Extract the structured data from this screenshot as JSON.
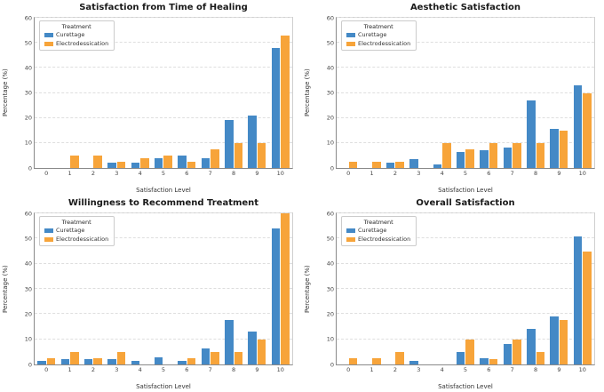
{
  "page": {
    "background": "#ffffff"
  },
  "colors": {
    "curettage": "#4489c6",
    "electrodessication": "#f7a43a"
  },
  "chart_data": [
    {
      "type": "bar",
      "title": "Satisfaction from Time of Healing",
      "xlabel": "Satisfaction Level",
      "ylabel": "Percentage (%)",
      "legend_title": "Treatment",
      "legend_position": "upper-left",
      "grid": "horizontal-dashed",
      "categories": [
        "0",
        "1",
        "2",
        "3",
        "4",
        "5",
        "6",
        "7",
        "8",
        "9",
        "10"
      ],
      "ylim": [
        0,
        60
      ],
      "yticks": [
        0,
        10,
        20,
        30,
        40,
        50,
        60
      ],
      "series": [
        {
          "name": "Curettage",
          "color": "#4489c6",
          "values": [
            0,
            0,
            0,
            2,
            2,
            4,
            5,
            4,
            19,
            21,
            48
          ]
        },
        {
          "name": "Electrodessication",
          "color": "#f7a43a",
          "values": [
            0,
            5,
            5,
            2.5,
            4,
            5,
            2.5,
            7.5,
            10,
            10,
            53
          ]
        }
      ]
    },
    {
      "type": "bar",
      "title": "Aesthetic Satisfaction",
      "xlabel": "Satisfaction Level",
      "ylabel": "Percentage (%)",
      "legend_title": "Treatment",
      "legend_position": "upper-left",
      "grid": "horizontal-dashed",
      "categories": [
        "0",
        "1",
        "2",
        "3",
        "4",
        "5",
        "6",
        "7",
        "8",
        "9",
        "10"
      ],
      "ylim": [
        0,
        60
      ],
      "yticks": [
        0,
        10,
        20,
        30,
        40,
        50,
        60
      ],
      "series": [
        {
          "name": "Curettage",
          "color": "#4489c6",
          "values": [
            0,
            0,
            2,
            3.5,
            1.5,
            6.5,
            7,
            8,
            27,
            15.5,
            33
          ]
        },
        {
          "name": "Electrodessication",
          "color": "#f7a43a",
          "values": [
            2.5,
            2.5,
            2.5,
            0,
            10,
            7.5,
            10,
            10,
            10,
            15,
            30
          ]
        }
      ]
    },
    {
      "type": "bar",
      "title": "Willingness to Recommend Treatment",
      "xlabel": "Satisfaction Level",
      "ylabel": "Percentage (%)",
      "legend_title": "Treatment",
      "legend_position": "upper-left",
      "grid": "horizontal-dashed",
      "categories": [
        "0",
        "1",
        "2",
        "3",
        "4",
        "5",
        "6",
        "7",
        "8",
        "9",
        "10"
      ],
      "ylim": [
        0,
        60
      ],
      "yticks": [
        0,
        10,
        20,
        30,
        40,
        50,
        60
      ],
      "series": [
        {
          "name": "Curettage",
          "color": "#4489c6",
          "values": [
            1.5,
            2,
            2,
            2,
            1.5,
            3,
            1.5,
            6.5,
            17.5,
            13,
            54
          ]
        },
        {
          "name": "Electrodessication",
          "color": "#f7a43a",
          "values": [
            2.5,
            5,
            2.5,
            5,
            0,
            0,
            2.5,
            5,
            5,
            10,
            60
          ]
        }
      ]
    },
    {
      "type": "bar",
      "title": "Overall Satisfaction",
      "xlabel": "Satisfaction Level",
      "ylabel": "Percentage (%)",
      "legend_title": "Treatment",
      "legend_position": "upper-left",
      "grid": "horizontal-dashed",
      "categories": [
        "0",
        "1",
        "2",
        "3",
        "4",
        "5",
        "6",
        "7",
        "8",
        "9",
        "10"
      ],
      "ylim": [
        0,
        60
      ],
      "yticks": [
        0,
        10,
        20,
        30,
        40,
        50,
        60
      ],
      "series": [
        {
          "name": "Curettage",
          "color": "#4489c6",
          "values": [
            0,
            0,
            0,
            1.5,
            0,
            5,
            2.5,
            8,
            14,
            19,
            51
          ]
        },
        {
          "name": "Electrodessication",
          "color": "#f7a43a",
          "values": [
            2.5,
            2.5,
            5,
            0,
            0,
            10,
            2,
            10,
            5,
            17.5,
            45
          ]
        }
      ]
    }
  ]
}
